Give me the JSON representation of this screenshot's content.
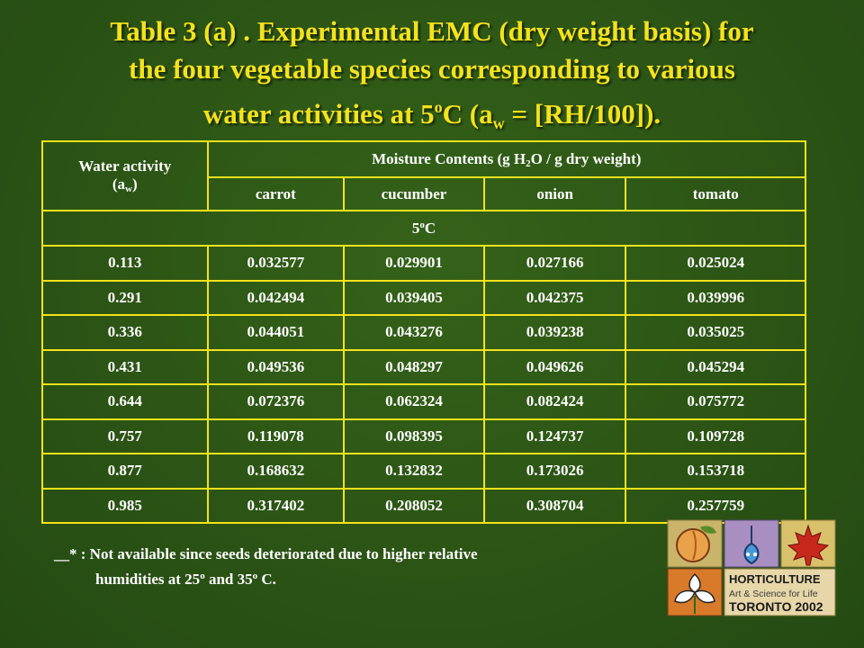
{
  "title": {
    "line1": "Table 3 (a) . Experimental EMC (dry weight basis) for",
    "line2": "the four vegetable species corresponding to various",
    "line3_pre": "water activities at 5",
    "line3_sup": "o",
    "line3_mid": "C (a",
    "line3_sub": "w",
    "line3_post": " = [RH/100])."
  },
  "table": {
    "header_aw_main": "Water activity",
    "header_aw_open": "(a",
    "header_aw_sub": "w",
    "header_aw_close": ")",
    "header_mc_pre": "Moisture Contents (g H",
    "header_mc_sub": "2",
    "header_mc_post": "O / g dry weight)",
    "columns": [
      "carrot",
      "cucumber",
      "onion",
      "tomato"
    ],
    "temp_num": "5",
    "temp_sup": "o",
    "temp_unit": "C",
    "rows": [
      [
        "0.113",
        "0.032577",
        "0.029901",
        "0.027166",
        "0.025024"
      ],
      [
        "0.291",
        "0.042494",
        "0.039405",
        "0.042375",
        "0.039996"
      ],
      [
        "0.336",
        "0.044051",
        "0.043276",
        "0.039238",
        "0.035025"
      ],
      [
        "0.431",
        "0.049536",
        "0.048297",
        "0.049626",
        "0.045294"
      ],
      [
        "0.644",
        "0.072376",
        "0.062324",
        "0.082424",
        "0.075772"
      ],
      [
        "0.757",
        "0.119078",
        "0.098395",
        "0.124737",
        "0.109728"
      ],
      [
        "0.877",
        "0.168632",
        "0.132832",
        "0.173026",
        "0.153718"
      ],
      [
        "0.985",
        "0.317402",
        "0.208052",
        "0.308704",
        "0.257759"
      ]
    ]
  },
  "note": {
    "line1": "__* : Not available since seeds deteriorated due to higher relative",
    "line2_pre": "humidities at 25",
    "line2_sup1": "o",
    "line2_mid": " and 35",
    "line2_sup2": "o",
    "line2_post": " C."
  },
  "logo": {
    "line1": "HORTICULTURE",
    "line2": "Art & Science for Life",
    "line3": "TORONTO 2002"
  },
  "colors": {
    "background": "#2d5616",
    "title": "#f4e21c",
    "border": "#f4e21c",
    "text": "#ffffff"
  }
}
